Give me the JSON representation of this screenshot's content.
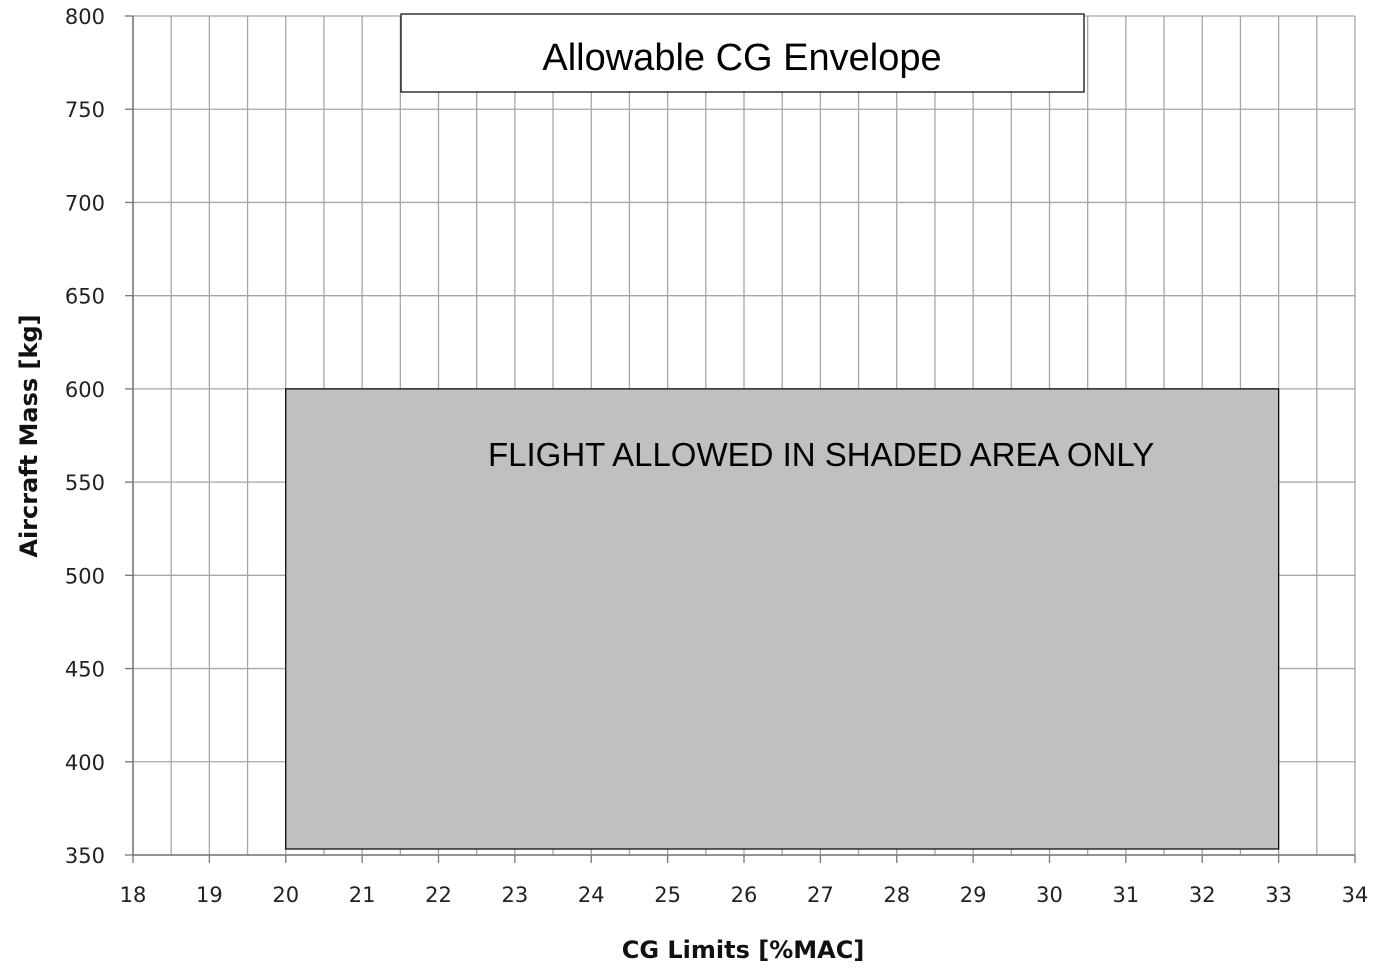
{
  "chart_data": {
    "type": "area",
    "title": "Allowable CG Envelope",
    "xlabel": "CG Limits [%MAC]",
    "ylabel": "Aircraft Mass [kg]",
    "xlim": [
      18,
      34
    ],
    "ylim": [
      350,
      800
    ],
    "x_ticks": [
      "18",
      "19",
      "20",
      "21",
      "22",
      "23",
      "24",
      "25",
      "26",
      "27",
      "28",
      "29",
      "30",
      "31",
      "32",
      "33",
      "34"
    ],
    "y_ticks": [
      "350",
      "400",
      "450",
      "500",
      "550",
      "600",
      "650",
      "700",
      "750",
      "800"
    ],
    "x_minor_step": 0.5,
    "y_major_step": 50,
    "grid": true,
    "envelope": {
      "x": [
        20,
        33
      ],
      "y": [
        350,
        600
      ],
      "fill_color": "#c0c0c0"
    },
    "annotation": "FLIGHT ALLOWED IN SHADED AREA ONLY"
  }
}
